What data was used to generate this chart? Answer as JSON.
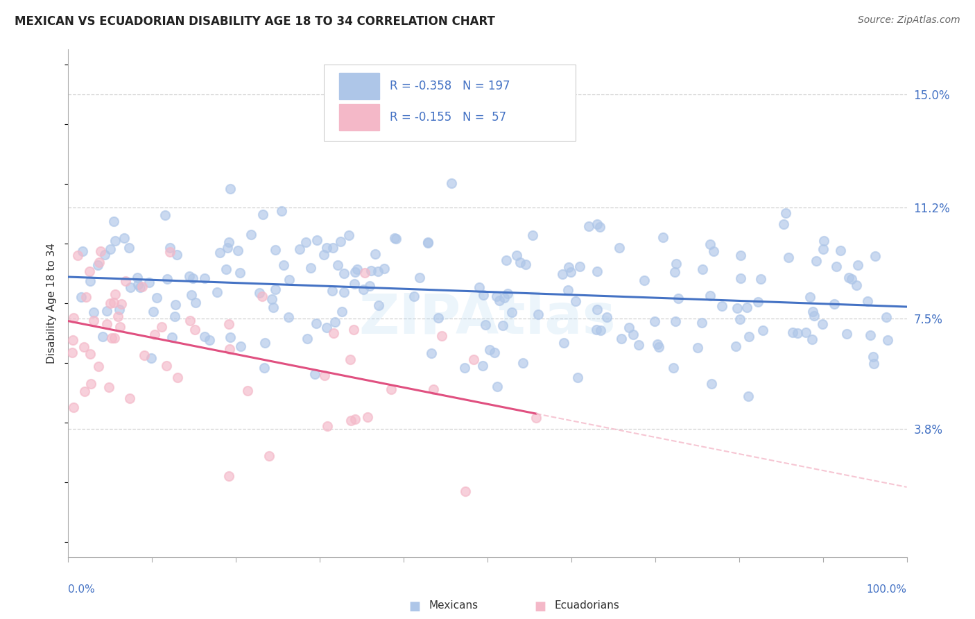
{
  "title": "MEXICAN VS ECUADORIAN DISABILITY AGE 18 TO 34 CORRELATION CHART",
  "source": "Source: ZipAtlas.com",
  "ylabel": "Disability Age 18 to 34",
  "xlim": [
    0,
    100
  ],
  "ylim": [
    -0.5,
    16.5
  ],
  "yticks": [
    3.8,
    7.5,
    11.2,
    15.0
  ],
  "ytick_labels": [
    "3.8%",
    "7.5%",
    "11.2%",
    "15.0%"
  ],
  "xtick_positions": [
    0,
    10,
    20,
    30,
    40,
    50,
    60,
    70,
    80,
    90,
    100
  ],
  "R_mexican": -0.358,
  "N_mexican": 197,
  "R_ecuadorian": -0.155,
  "N_ecuadorian": 57,
  "watermark": "ZIPAtlas",
  "background_color": "#ffffff",
  "grid_color": "#cccccc",
  "blue_color": "#4472c4",
  "blue_light": "#aec6e8",
  "pink_color": "#e05080",
  "pink_light": "#f4b8c8",
  "label_color": "#4472c4",
  "mexican_seed": 42,
  "ecuadorian_seed": 7,
  "mex_intercept": 8.8,
  "mex_slope": -0.013,
  "mex_noise": 1.4,
  "ecu_intercept": 7.2,
  "ecu_slope": -0.035,
  "ecu_noise": 1.6,
  "dot_size": 90,
  "dot_alpha": 0.65,
  "line_width": 2.2
}
